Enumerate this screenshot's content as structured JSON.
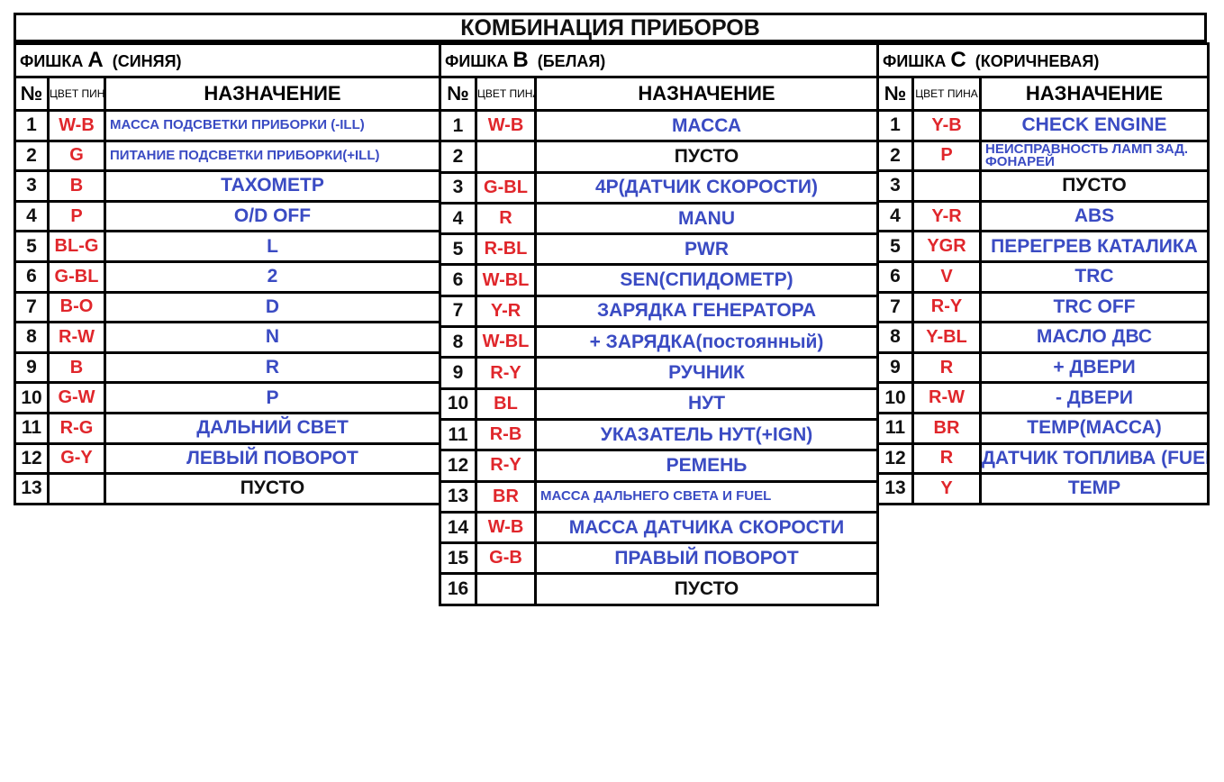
{
  "title": "КОМБИНАЦИЯ ПРИБОРОВ",
  "colors": {
    "pin_color": "#e0262b",
    "description": "#3a4bc3",
    "empty": "#111111"
  },
  "column_headers": {
    "no": "№",
    "color": "ЦВЕТ ПИНА",
    "purpose": "НАЗНАЧЕНИЕ"
  },
  "connectors": [
    {
      "label": "ФИШКА",
      "letter": "A",
      "subtitle": "(СИНЯЯ)",
      "rows": [
        {
          "no": "1",
          "color": "W-B",
          "purpose": "МАССА ПОДСВЕТКИ ПРИБОРКИ (-ILL)"
        },
        {
          "no": "2",
          "color": "G",
          "purpose": "ПИТАНИЕ ПОДСВЕТКИ ПРИБОРКИ(+ILL)"
        },
        {
          "no": "3",
          "color": "B",
          "purpose": "ТАХОМЕТР"
        },
        {
          "no": "4",
          "color": "P",
          "purpose": "O/D OFF"
        },
        {
          "no": "5",
          "color": "BL-G",
          "purpose": "L"
        },
        {
          "no": "6",
          "color": "G-BL",
          "purpose": "2"
        },
        {
          "no": "7",
          "color": "B-O",
          "purpose": "D"
        },
        {
          "no": "8",
          "color": "R-W",
          "purpose": "N"
        },
        {
          "no": "9",
          "color": "B",
          "purpose": "R"
        },
        {
          "no": "10",
          "color": "G-W",
          "purpose": "P"
        },
        {
          "no": "11",
          "color": "R-G",
          "purpose": "ДАЛЬНИЙ СВЕТ"
        },
        {
          "no": "12",
          "color": "G-Y",
          "purpose": "ЛЕВЫЙ ПОВОРОТ"
        },
        {
          "no": "13",
          "color": "",
          "purpose": "ПУСТО"
        }
      ]
    },
    {
      "label": "ФИШКА",
      "letter": "B",
      "subtitle": "(БЕЛАЯ)",
      "rows": [
        {
          "no": "1",
          "color": "W-B",
          "purpose": "МАССА"
        },
        {
          "no": "2",
          "color": "",
          "purpose": "ПУСТО"
        },
        {
          "no": "3",
          "color": "G-BL",
          "purpose": "4Р(ДАТЧИК СКОРОСТИ)"
        },
        {
          "no": "4",
          "color": "R",
          "purpose": "MANU"
        },
        {
          "no": "5",
          "color": "R-BL",
          "purpose": "PWR"
        },
        {
          "no": "6",
          "color": "W-BL",
          "purpose": "SEN(СПИДОМЕТР)"
        },
        {
          "no": "7",
          "color": "Y-R",
          "purpose": "ЗАРЯДКА ГЕНЕРАТОРА"
        },
        {
          "no": "8",
          "color": "W-BL",
          "purpose": "+ ЗАРЯДКА(постоянный)"
        },
        {
          "no": "9",
          "color": "R-Y",
          "purpose": "РУЧНИК"
        },
        {
          "no": "10",
          "color": "BL",
          "purpose": "НУТ"
        },
        {
          "no": "11",
          "color": "R-B",
          "purpose": "УКАЗАТЕЛЬ НУТ(+IGN)"
        },
        {
          "no": "12",
          "color": "R-Y",
          "purpose": "РЕМЕНЬ"
        },
        {
          "no": "13",
          "color": "BR",
          "purpose": "МАССА ДАЛЬНЕГО СВЕТА И FUEL"
        },
        {
          "no": "14",
          "color": "W-B",
          "purpose": "МАССА ДАТЧИКА СКОРОСТИ"
        },
        {
          "no": "15",
          "color": "G-B",
          "purpose": "ПРАВЫЙ ПОВОРОТ"
        },
        {
          "no": "16",
          "color": "",
          "purpose": "ПУСТО"
        }
      ]
    },
    {
      "label": "ФИШКА",
      "letter": "C",
      "subtitle": "(КОРИЧНЕВАЯ)",
      "rows": [
        {
          "no": "1",
          "color": "Y-B",
          "purpose": "CHECK ENGINE"
        },
        {
          "no": "2",
          "color": "P",
          "purpose": "НЕИСПРАВНОСТЬ ЛАМП ЗАД. ФОНАРЕЙ"
        },
        {
          "no": "3",
          "color": "",
          "purpose": "ПУСТО"
        },
        {
          "no": "4",
          "color": "Y-R",
          "purpose": "ABS"
        },
        {
          "no": "5",
          "color": "YGR",
          "purpose": "ПЕРЕГРЕВ КАТАЛИКА"
        },
        {
          "no": "6",
          "color": "V",
          "purpose": "TRC"
        },
        {
          "no": "7",
          "color": "R-Y",
          "purpose": "TRC OFF"
        },
        {
          "no": "8",
          "color": "Y-BL",
          "purpose": "МАСЛО ДВС"
        },
        {
          "no": "9",
          "color": "R",
          "purpose": "+ ДВЕРИ"
        },
        {
          "no": "10",
          "color": "R-W",
          "purpose": "- ДВЕРИ"
        },
        {
          "no": "11",
          "color": "BR",
          "purpose": "TEMP(МАССА)"
        },
        {
          "no": "12",
          "color": "R",
          "purpose": "ДАТЧИК ТОПЛИВА (FUEL)"
        },
        {
          "no": "13",
          "color": "Y",
          "purpose": "TEMP"
        }
      ]
    }
  ]
}
